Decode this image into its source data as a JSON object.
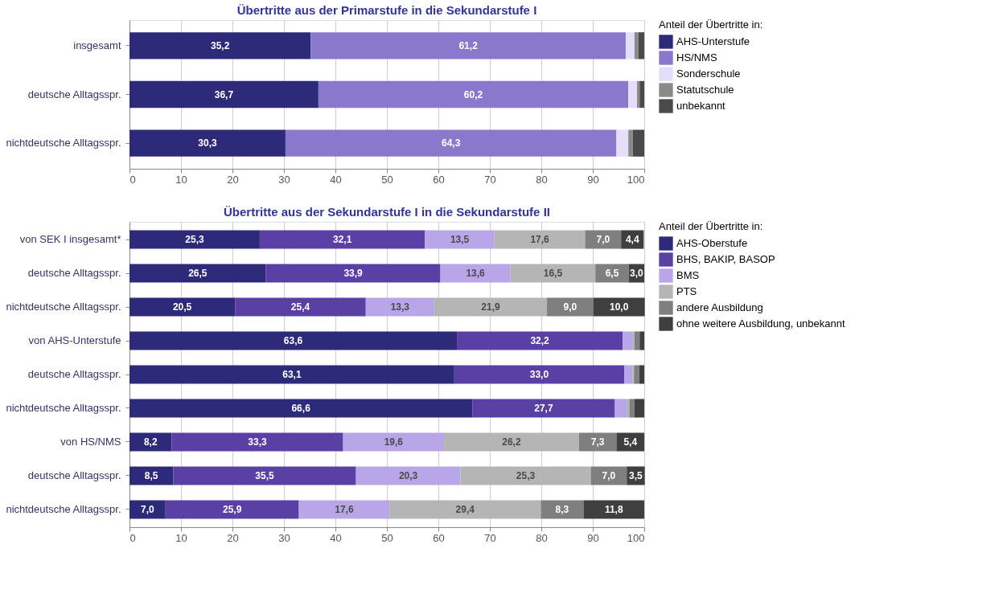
{
  "chart_data": [
    {
      "type": "bar",
      "orientation": "horizontal",
      "stacked": true,
      "title": "Übertritte aus der Primarstufe in die Sekundarstufe I",
      "legend_title": "Anteil der Übertritte in:",
      "legend": "right",
      "grid": "x",
      "xlim": [
        0,
        100
      ],
      "xticks": [
        0,
        10,
        20,
        30,
        40,
        50,
        60,
        70,
        80,
        90,
        100
      ],
      "categories": [
        "insgesamt",
        "deutsche Alltagsspr.",
        "nichtdeutsche Alltagsspr."
      ],
      "series": [
        {
          "name": "AHS-Unterstufe",
          "color": "#2e2a7a",
          "values": [
            35.2,
            36.7,
            30.3
          ],
          "value_labels": [
            "35,2",
            "36,7",
            "30,3"
          ]
        },
        {
          "name": "HS/NMS",
          "color": "#8a78cc",
          "values": [
            61.2,
            60.2,
            64.3
          ],
          "value_labels": [
            "61,2",
            "60,2",
            "64,3"
          ]
        },
        {
          "name": "Sonderschule",
          "color": "#e4defa",
          "values": [
            1.7,
            1.7,
            2.3
          ]
        },
        {
          "name": "Statutschule",
          "color": "#8a8a8a",
          "values": [
            0.8,
            0.5,
            0.9
          ]
        },
        {
          "name": "unbekannt",
          "color": "#4a4a4a",
          "values": [
            1.1,
            0.9,
            2.2
          ]
        }
      ]
    },
    {
      "type": "bar",
      "orientation": "horizontal",
      "stacked": true,
      "title": "Übertritte aus der Sekundarstufe I in die Sekundarstufe II",
      "legend_title": "Anteil der Übertritte in:",
      "legend": "right",
      "grid": "x",
      "xlim": [
        0,
        100
      ],
      "xticks": [
        0,
        10,
        20,
        30,
        40,
        50,
        60,
        70,
        80,
        90,
        100
      ],
      "categories": [
        "von SEK I insgesamt*",
        "deutsche Alltagsspr.",
        "nichtdeutsche Alltagsspr.",
        "von AHS-Unterstufe",
        "deutsche Alltagsspr.",
        "nichtdeutsche Alltagsspr.",
        "von HS/NMS",
        "deutsche Alltagsspr.",
        "nichtdeutsche Alltagsspr."
      ],
      "series": [
        {
          "name": "AHS-Oberstufe",
          "color": "#2e2a7a",
          "values": [
            25.3,
            26.5,
            20.5,
            63.6,
            63.1,
            66.6,
            8.2,
            8.5,
            7.0
          ],
          "value_labels": [
            "25,3",
            "26,5",
            "20,5",
            "63,6",
            "63,1",
            "66,6",
            "8,2",
            "8,5",
            "7,0"
          ]
        },
        {
          "name": "BHS, BAKIP, BASOP",
          "color": "#5a3fa5",
          "values": [
            32.1,
            33.9,
            25.4,
            32.2,
            33.0,
            27.7,
            33.3,
            35.5,
            25.9
          ],
          "value_labels": [
            "32,1",
            "33,9",
            "25,4",
            "32,2",
            "33,0",
            "27,7",
            "33,3",
            "35,5",
            "25,9"
          ]
        },
        {
          "name": "BMS",
          "color": "#b8a6e8",
          "values": [
            13.5,
            13.6,
            13.3,
            2.0,
            1.6,
            2.4,
            19.6,
            20.3,
            17.6
          ],
          "value_labels": [
            "13,5",
            "13,6",
            "13,3",
            null,
            null,
            null,
            "19,6",
            "20,3",
            "17,6"
          ]
        },
        {
          "name": "PTS",
          "color": "#b5b5b5",
          "values": [
            17.6,
            16.5,
            21.9,
            0.3,
            0.3,
            0.4,
            26.2,
            25.3,
            29.4
          ],
          "value_labels": [
            "17,6",
            "16,5",
            "21,9",
            null,
            null,
            null,
            "26,2",
            "25,3",
            "29,4"
          ]
        },
        {
          "name": "andere Ausbildung",
          "color": "#7f7f7f",
          "values": [
            7.0,
            6.5,
            9.0,
            1.0,
            1.0,
            1.0,
            7.3,
            7.0,
            8.3
          ],
          "value_labels": [
            "7,0",
            "6,5",
            "9,0",
            null,
            null,
            null,
            "7,3",
            "7,0",
            "8,3"
          ]
        },
        {
          "name": "ohne weitere Ausbildung, unbekannt",
          "color": "#3f3f3f",
          "values": [
            4.4,
            3.0,
            10.0,
            0.9,
            1.0,
            1.9,
            5.4,
            3.5,
            11.8
          ],
          "value_labels": [
            "4,4",
            "3,0",
            "10,0",
            null,
            null,
            null,
            "5,4",
            "3,5",
            "11,8"
          ]
        }
      ]
    }
  ]
}
